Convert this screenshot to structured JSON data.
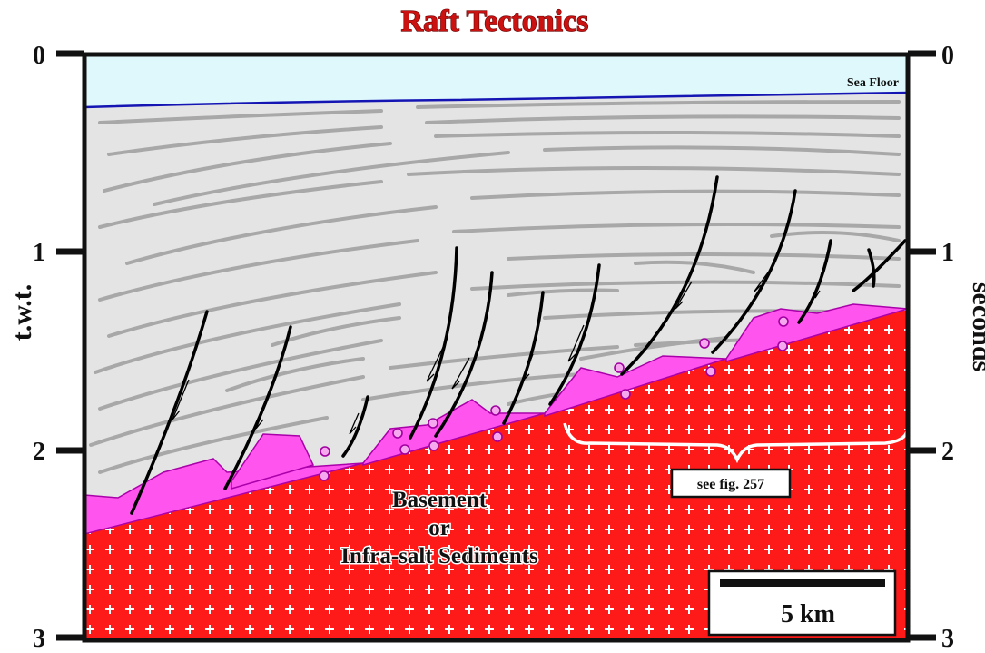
{
  "title": "Raft Tectonics",
  "axes": {
    "left_label": "t.w.t.",
    "right_label": "seconds",
    "ticks": [
      "0",
      "1",
      "2",
      "3"
    ]
  },
  "labels": {
    "sea_floor": "Sea Floor",
    "basement_line1": "Basement",
    "basement_line2": "or",
    "basement_line3": "Infra-salt Sediments",
    "see_figure": "see fig. 257"
  },
  "scale_bar": {
    "label": "5 km"
  },
  "colors": {
    "water": "#dff8fb",
    "sediment": "#e4e4e4",
    "bedding": "#a8a8a8",
    "salt": "#ff55ee",
    "basement": "#ff1a1a",
    "sea_floor_line": "#1515b4",
    "title": "#cc1111"
  }
}
